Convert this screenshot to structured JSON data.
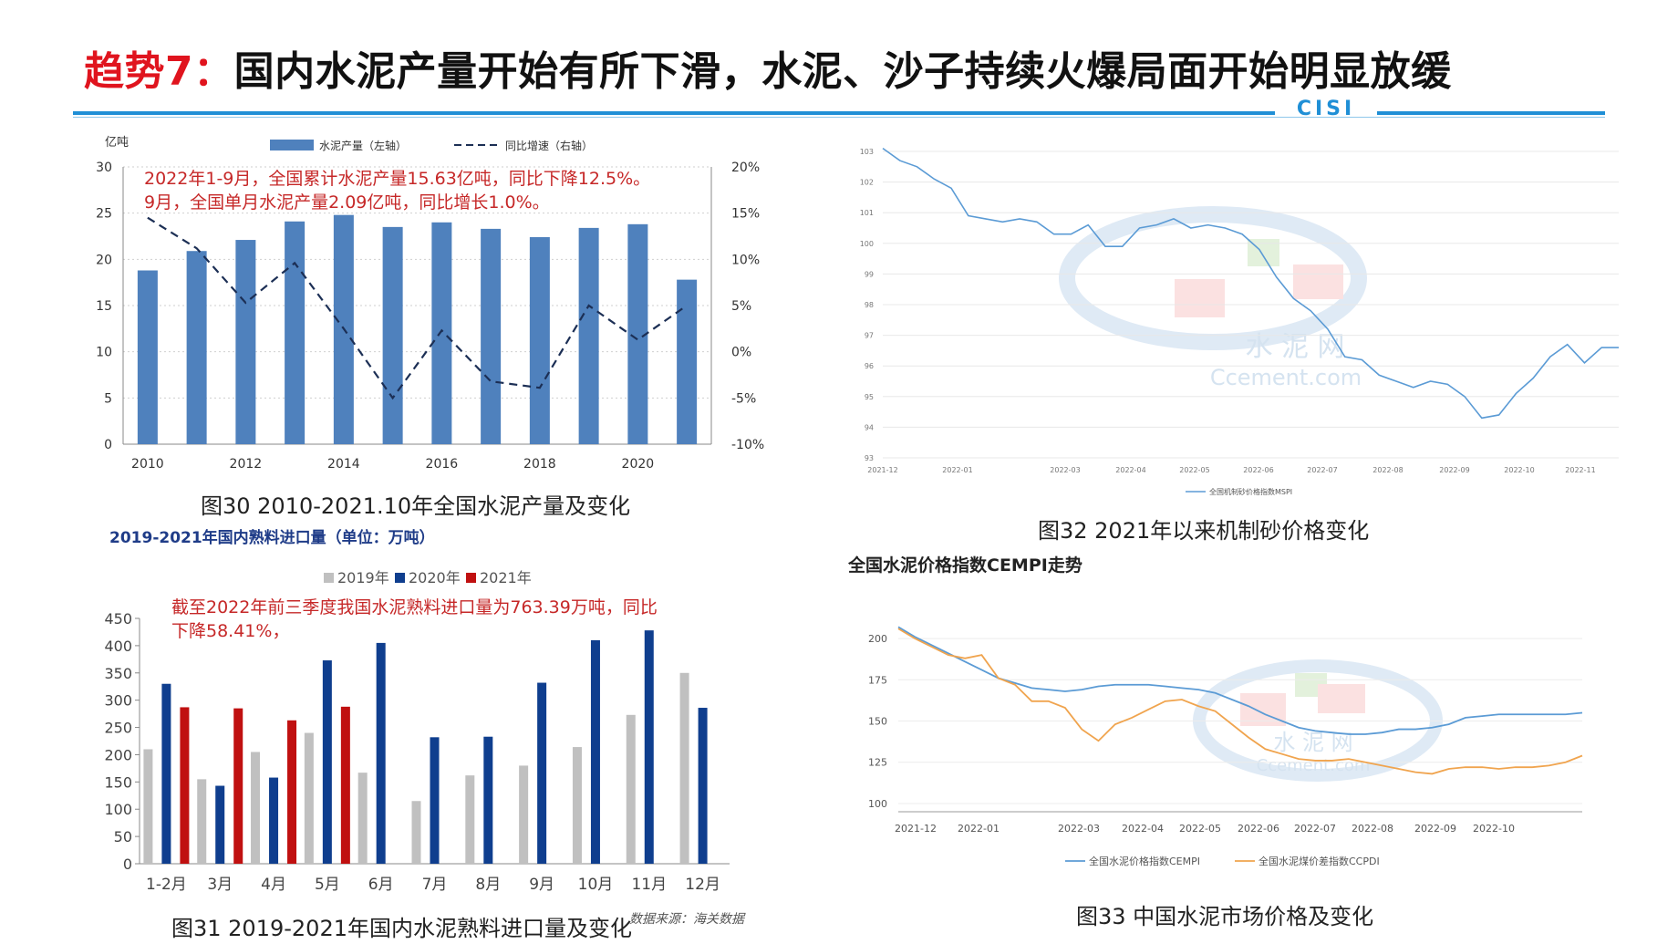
{
  "slide": {
    "title_prefix": "趋势7：",
    "title_rest": "国内水泥产量开始有所下滑，水泥、沙子持续火爆局面开始明显放缓",
    "logo_text": "CISI"
  },
  "captions": {
    "fig30": "图30 2010-2021.10年全国水泥产量及变化",
    "fig31": "图31 2019-2021年国内水泥熟料进口量及变化",
    "fig32": "图32 2021年以来机制砂价格变化",
    "fig33": "图33 中国水泥市场价格及变化"
  },
  "chart_data": [
    {
      "id": "fig30",
      "type": "bar",
      "title": "",
      "ylabel": "亿吨",
      "ylim": [
        0,
        30
      ],
      "yticks": [
        "0",
        "5",
        "10",
        "15",
        "20",
        "25",
        "30"
      ],
      "y2ticks": [
        "-10%",
        "-5%",
        "0%",
        "5%",
        "10%",
        "15%",
        "20%"
      ],
      "y2lim": [
        -10,
        20
      ],
      "categories": [
        2010,
        2011,
        2012,
        2013,
        2014,
        2015,
        2016,
        2017,
        2018,
        2019,
        2020,
        2021
      ],
      "xticklabels": [
        "2010",
        "2012",
        "2014",
        "2016",
        "2018",
        "2020"
      ],
      "series": [
        {
          "name": "水泥产量（左轴）",
          "type": "bar",
          "values": [
            18.8,
            20.9,
            22.1,
            24.1,
            24.8,
            23.5,
            24.0,
            23.3,
            22.4,
            23.4,
            23.8,
            17.8
          ]
        },
        {
          "name": "同比增速（右轴）",
          "type": "line",
          "axis": "right",
          "values": [
            14.5,
            11.2,
            5.3,
            9.6,
            2.5,
            -5.0,
            2.3,
            -3.2,
            -3.9,
            5.0,
            1.3,
            5.0
          ]
        }
      ],
      "annotation": [
        "2022年1-9月，全国累计水泥产量15.63亿吨，同比下降12.5%。",
        "9月，全国单月水泥产量2.09亿吨，同比增长1.0%。"
      ]
    },
    {
      "id": "fig31",
      "type": "bar",
      "title": "2019-2021年国内熟料进口量（单位：万吨）",
      "ylim": [
        0,
        450
      ],
      "yticks": [
        "0",
        "50",
        "100",
        "150",
        "200",
        "250",
        "300",
        "350",
        "400",
        "450"
      ],
      "categories": [
        "1-2月",
        "3月",
        "4月",
        "5月",
        "6月",
        "7月",
        "8月",
        "9月",
        "10月",
        "11月",
        "12月"
      ],
      "series": [
        {
          "name": "2019年",
          "color": "#c0c0c0",
          "values": [
            210,
            155,
            205,
            240,
            167,
            115,
            162,
            180,
            214,
            273,
            350
          ]
        },
        {
          "name": "2020年",
          "color": "#0f3e8e",
          "values": [
            330,
            143,
            158,
            373,
            405,
            232,
            233,
            332,
            410,
            428,
            286
          ]
        },
        {
          "name": "2021年",
          "color": "#c01010",
          "values": [
            287,
            285,
            263,
            288,
            null,
            null,
            null,
            null,
            null,
            null,
            null
          ]
        }
      ],
      "annotation": [
        "截至2022年前三季度我国水泥熟料进口量为763.39万吨，同比",
        "下降58.41%，"
      ],
      "source": "数据来源：海关数据"
    },
    {
      "id": "fig32",
      "type": "line",
      "title": "",
      "ylim": [
        93,
        103
      ],
      "yticks": [
        "93",
        "94",
        "95",
        "96",
        "97",
        "98",
        "99",
        "100",
        "101",
        "102",
        "103"
      ],
      "xticklabels": [
        "2021-12",
        "2022-01",
        "2022-03",
        "2022-04",
        "2022-05",
        "2022-06",
        "2022-07",
        "2022-08",
        "2022-09",
        "2022-10",
        "2022-11"
      ],
      "series": [
        {
          "name": "全国机制砂价格指数MSPI",
          "color": "#5b9bd5",
          "values": [
            103.1,
            102.7,
            102.5,
            102.1,
            101.8,
            100.9,
            100.8,
            100.7,
            100.8,
            100.7,
            100.3,
            100.3,
            100.6,
            99.9,
            99.9,
            100.5,
            100.6,
            100.8,
            100.5,
            100.6,
            100.5,
            100.3,
            99.8,
            98.9,
            98.2,
            97.8,
            97.2,
            96.3,
            96.2,
            95.7,
            95.5,
            95.3,
            95.5,
            95.4,
            95.0,
            94.3,
            94.4,
            95.1,
            95.6,
            96.3,
            96.7,
            96.1,
            96.6,
            96.6
          ]
        }
      ],
      "watermark": [
        "水 泥 网",
        "Ccement.com"
      ]
    },
    {
      "id": "fig33",
      "type": "line",
      "title": "全国水泥价格指数CEMPI走势",
      "ylim": [
        95,
        210
      ],
      "yticks": [
        "100",
        "125",
        "150",
        "175",
        "200"
      ],
      "xticklabels": [
        "2021-12",
        "2022-01",
        "2022-03",
        "2022-04",
        "2022-05",
        "2022-06",
        "2022-07",
        "2022-08",
        "2022-09",
        "2022-10"
      ],
      "series": [
        {
          "name": "全国水泥价格指数CEMPI",
          "color": "#5b9bd5",
          "values": [
            207,
            201,
            196,
            191,
            186,
            181,
            176,
            173,
            170,
            169,
            168,
            169,
            171,
            172,
            172,
            172,
            171,
            170,
            169,
            167,
            163,
            159,
            154,
            150,
            146,
            144,
            143,
            142,
            142,
            143,
            145,
            145,
            146,
            148,
            152,
            153,
            154,
            154,
            154,
            154,
            154,
            155
          ]
        },
        {
          "name": "全国水泥煤价差指数CCPDI",
          "color": "#f0a44e",
          "values": [
            206,
            200,
            195,
            190,
            188,
            190,
            176,
            172,
            162,
            162,
            158,
            145,
            138,
            148,
            152,
            157,
            162,
            163,
            159,
            156,
            148,
            140,
            133,
            130,
            127,
            126,
            126,
            127,
            125,
            123,
            121,
            119,
            118,
            121,
            122,
            122,
            121,
            122,
            122,
            123,
            125,
            129
          ]
        }
      ],
      "watermark": [
        "水 泥 网",
        "Ccement.com"
      ]
    }
  ]
}
